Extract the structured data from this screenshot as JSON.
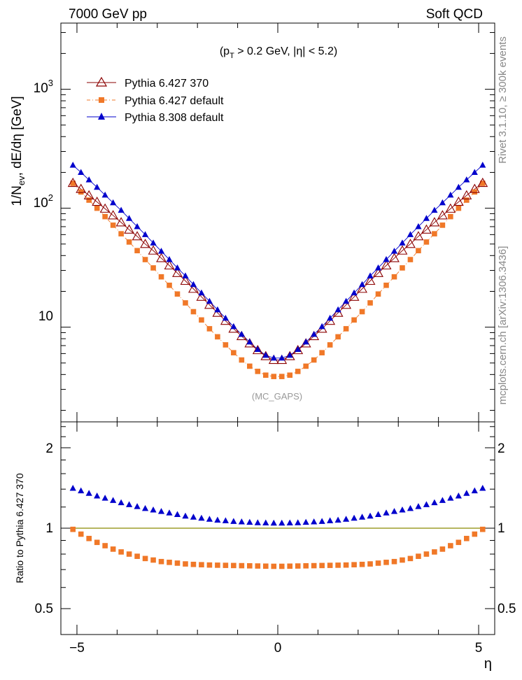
{
  "header": {
    "energy_label": "7000 GeV pp",
    "process_label": "Soft QCD"
  },
  "side_labels": {
    "rivet": "Rivet 3.1.10, ≥ 300k events",
    "mcplots": "mcplots.cern.ch [arXiv:1306.3436]"
  },
  "chart_data": [
    {
      "type": "scatter",
      "panel": "main",
      "title": "",
      "cut_label": {
        "p": "(p",
        "sub": "T",
        "rest": " > 0.2 GeV, |η| < 5.2)"
      },
      "ylabel": {
        "a": "1/N",
        "sub": "ev",
        "b": ", dE/dη [GeV]"
      },
      "xlabel": "η",
      "analysis_label": "(MC_GAPS)",
      "yscale": "log",
      "xlim": [
        -5.4,
        5.4
      ],
      "ylim": [
        1.6,
        3600
      ],
      "y_tick_labels": [
        {
          "value": 10,
          "text": "10"
        },
        {
          "value": 100,
          "base": "10",
          "exp": "2"
        },
        {
          "value": 1000,
          "base": "10",
          "exp": "3"
        }
      ],
      "x_tick_labels": [
        {
          "value": -5,
          "text": "−5"
        },
        {
          "value": 0,
          "text": "0"
        },
        {
          "value": 5,
          "text": "5"
        }
      ],
      "legend_position": "top-left",
      "x": [
        -5.1,
        -4.9,
        -4.7,
        -4.5,
        -4.3,
        -4.1,
        -3.9,
        -3.7,
        -3.5,
        -3.3,
        -3.1,
        -2.9,
        -2.7,
        -2.5,
        -2.3,
        -2.1,
        -1.9,
        -1.7,
        -1.5,
        -1.3,
        -1.1,
        -0.9,
        -0.7,
        -0.5,
        -0.3,
        -0.1,
        0.1,
        0.3,
        0.5,
        0.7,
        0.9,
        1.1,
        1.3,
        1.5,
        1.7,
        1.9,
        2.1,
        2.3,
        2.5,
        2.7,
        2.9,
        3.1,
        3.3,
        3.5,
        3.7,
        3.9,
        4.1,
        4.3,
        4.5,
        4.7,
        4.9,
        5.1
      ],
      "series": [
        {
          "name": "Pythia 6.427 370",
          "color": "#8b0000",
          "marker": "triangle-open",
          "values": [
            163,
            145,
            128,
            113,
            99,
            87,
            76,
            66,
            58,
            50,
            44,
            38,
            33,
            28.5,
            24.5,
            21,
            18,
            15.4,
            13.2,
            11.3,
            9.7,
            8.4,
            7.3,
            6.4,
            5.7,
            5.3,
            5.3,
            5.7,
            6.4,
            7.3,
            8.4,
            9.7,
            11.3,
            13.2,
            15.4,
            18,
            21,
            24.5,
            28.5,
            33,
            38,
            44,
            50,
            58,
            66,
            76,
            87,
            99,
            113,
            128,
            145,
            163
          ]
        },
        {
          "name": "Pythia 6.427 default",
          "color": "#f07828",
          "marker": "square",
          "values": [
            162,
            137,
            117,
            100,
            85,
            72,
            61,
            52,
            44,
            37,
            31.5,
            26.5,
            22.5,
            19,
            16,
            13.5,
            11.5,
            9.7,
            8.3,
            7.1,
            6.1,
            5.3,
            4.7,
            4.25,
            3.95,
            3.85,
            3.85,
            3.95,
            4.25,
            4.7,
            5.3,
            6.1,
            7.1,
            8.3,
            9.7,
            11.5,
            13.5,
            16,
            19,
            22.5,
            26.5,
            31.5,
            37,
            44,
            52,
            61,
            72,
            85,
            100,
            117,
            137,
            162
          ]
        },
        {
          "name": "Pythia 8.308 default",
          "color": "#0000cc",
          "marker": "triangle",
          "values": [
            230,
            200,
            173,
            150,
            129,
            111,
            96,
            82,
            70,
            60,
            51,
            43.5,
            37,
            31.5,
            27,
            22.8,
            19.4,
            16.5,
            14,
            11.9,
            10.1,
            8.7,
            7.5,
            6.5,
            5.8,
            5.5,
            5.5,
            5.8,
            6.5,
            7.5,
            8.7,
            10.1,
            11.9,
            14,
            16.5,
            19.4,
            22.8,
            27,
            31.5,
            37,
            43.5,
            51,
            60,
            70,
            82,
            96,
            111,
            129,
            150,
            173,
            200,
            230
          ]
        }
      ]
    },
    {
      "type": "scatter",
      "panel": "ratio",
      "ylabel": "Ratio to Pythia 6.427 370",
      "xlabel": "η",
      "yscale": "log",
      "xlim": [
        -5.4,
        5.4
      ],
      "ylim": [
        0.4,
        2.5
      ],
      "y_tick_labels": [
        {
          "value": 0.5,
          "text": "0.5"
        },
        {
          "value": 1,
          "text": "1"
        },
        {
          "value": 2,
          "text": "2"
        }
      ],
      "reference_line": {
        "value": 1,
        "color": "#8b8b00"
      },
      "series": [
        {
          "name": "Pythia 6.427 default",
          "color": "#f07828",
          "marker": "square",
          "values": [
            0.99,
            0.95,
            0.915,
            0.885,
            0.86,
            0.835,
            0.815,
            0.8,
            0.785,
            0.77,
            0.76,
            0.75,
            0.745,
            0.74,
            0.735,
            0.732,
            0.73,
            0.728,
            0.727,
            0.726,
            0.725,
            0.724,
            0.723,
            0.722,
            0.721,
            0.72,
            0.72,
            0.721,
            0.722,
            0.723,
            0.724,
            0.725,
            0.726,
            0.727,
            0.728,
            0.73,
            0.732,
            0.735,
            0.74,
            0.745,
            0.75,
            0.76,
            0.77,
            0.785,
            0.8,
            0.815,
            0.835,
            0.86,
            0.885,
            0.915,
            0.95,
            0.99
          ]
        },
        {
          "name": "Pythia 8.308 default",
          "color": "#0000cc",
          "marker": "triangle",
          "values": [
            1.41,
            1.38,
            1.35,
            1.32,
            1.295,
            1.27,
            1.245,
            1.225,
            1.205,
            1.185,
            1.17,
            1.155,
            1.14,
            1.125,
            1.11,
            1.1,
            1.09,
            1.08,
            1.072,
            1.066,
            1.06,
            1.056,
            1.052,
            1.048,
            1.046,
            1.045,
            1.045,
            1.046,
            1.048,
            1.052,
            1.056,
            1.06,
            1.066,
            1.072,
            1.08,
            1.09,
            1.1,
            1.11,
            1.125,
            1.14,
            1.155,
            1.17,
            1.185,
            1.205,
            1.225,
            1.245,
            1.27,
            1.295,
            1.32,
            1.35,
            1.38,
            1.41
          ]
        }
      ]
    }
  ]
}
